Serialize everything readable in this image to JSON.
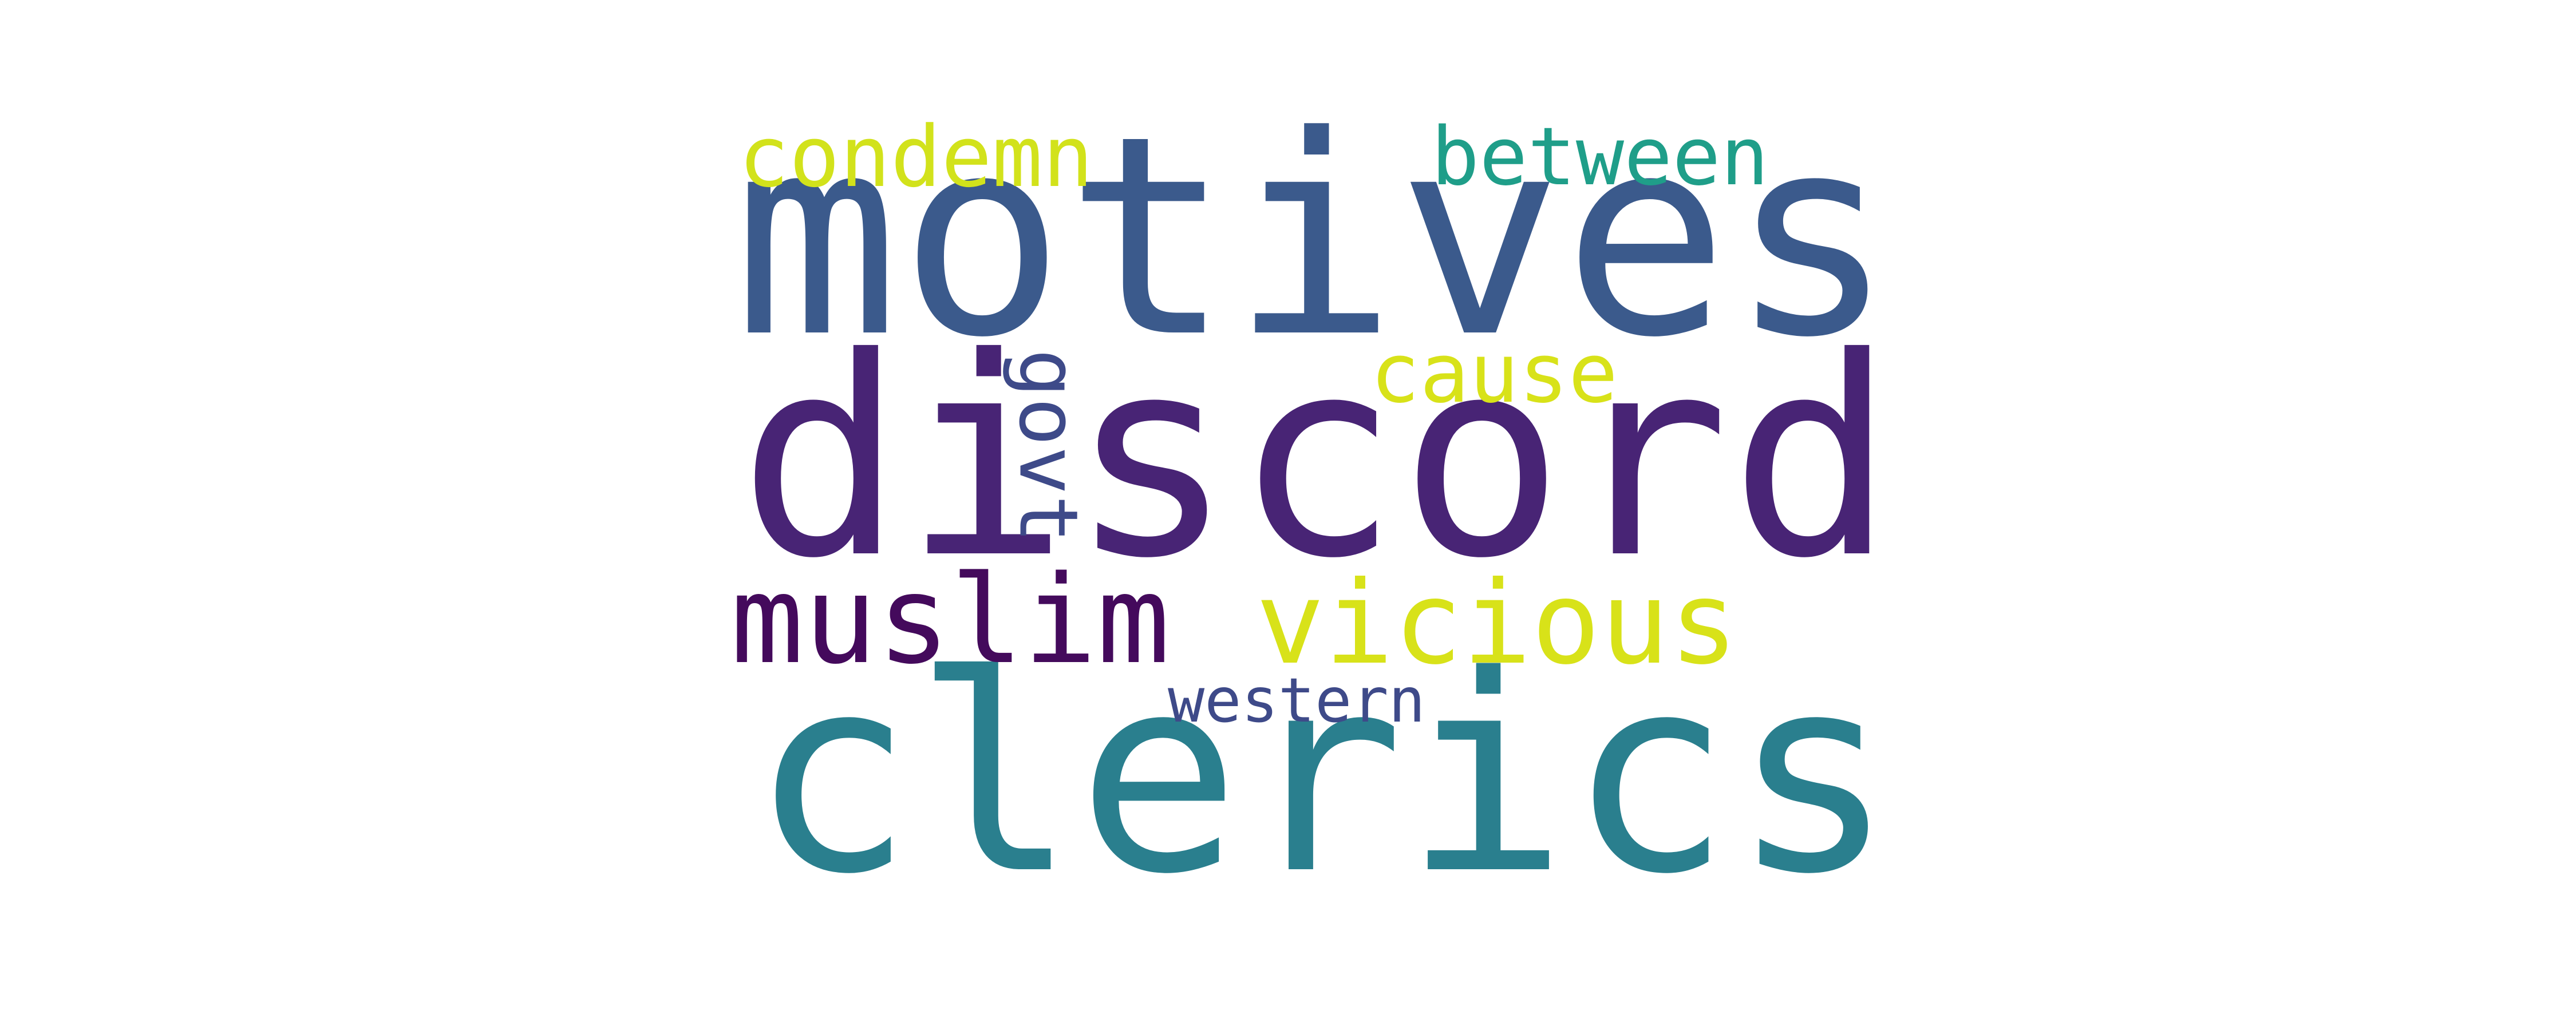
{
  "words": [
    {
      "text": "motives",
      "color": "#3b5a8c"
    },
    {
      "text": "discord",
      "color": "#482475"
    },
    {
      "text": "clerics",
      "color": "#2a7f8e"
    },
    {
      "text": "muslim",
      "color": "#440a5c"
    },
    {
      "text": "vicious",
      "color": "#d8e219"
    },
    {
      "text": "condemn",
      "color": "#d2e21b"
    },
    {
      "text": "between",
      "color": "#1f9e89"
    },
    {
      "text": "cause",
      "color": "#d8e219"
    },
    {
      "text": "govt",
      "color": "#3e4a89"
    },
    {
      "text": "western",
      "color": "#3e4a89"
    }
  ]
}
